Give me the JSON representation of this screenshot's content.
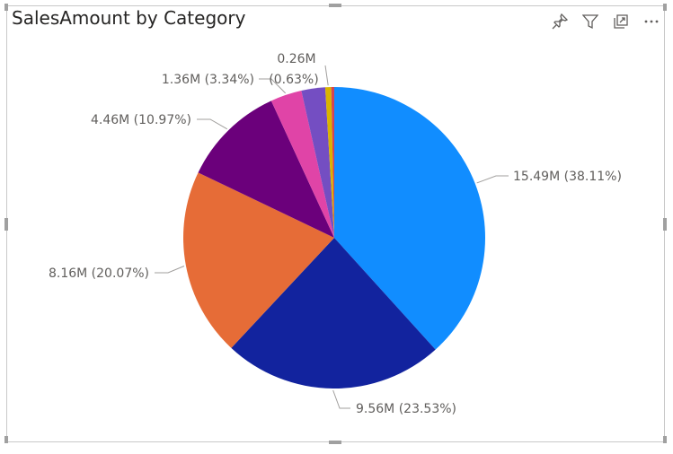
{
  "title": "SalesAmount by Category",
  "toolbar": {
    "icons": [
      "pin-icon",
      "filter-icon",
      "focus-mode-icon",
      "more-options-icon"
    ]
  },
  "chart_data": {
    "type": "pie",
    "title": "SalesAmount by Category",
    "slices": [
      {
        "value": 15.49,
        "percent": 38.11,
        "label": "15.49M (38.11%)",
        "color": "#118DFF"
      },
      {
        "value": 9.56,
        "percent": 23.53,
        "label": "9.56M (23.53%)",
        "color": "#12239E"
      },
      {
        "value": 8.16,
        "percent": 20.07,
        "label": "8.16M (20.07%)",
        "color": "#E66C37"
      },
      {
        "value": 4.46,
        "percent": 10.97,
        "label": "4.46M (10.97%)",
        "color": "#6B007B"
      },
      {
        "value": 1.36,
        "percent": 3.34,
        "label": "1.36M (3.34%)",
        "color": "#E044A7"
      },
      {
        "value": 1.03,
        "percent": 2.53,
        "label": "",
        "color": "#744EC2"
      },
      {
        "value": 0.26,
        "percent": 0.63,
        "label": "0.26M",
        "label_pct": "(0.63%)",
        "color": "#D9B300"
      },
      {
        "value": 0.13,
        "percent": 0.32,
        "label": "",
        "color": "#D64550"
      }
    ]
  }
}
